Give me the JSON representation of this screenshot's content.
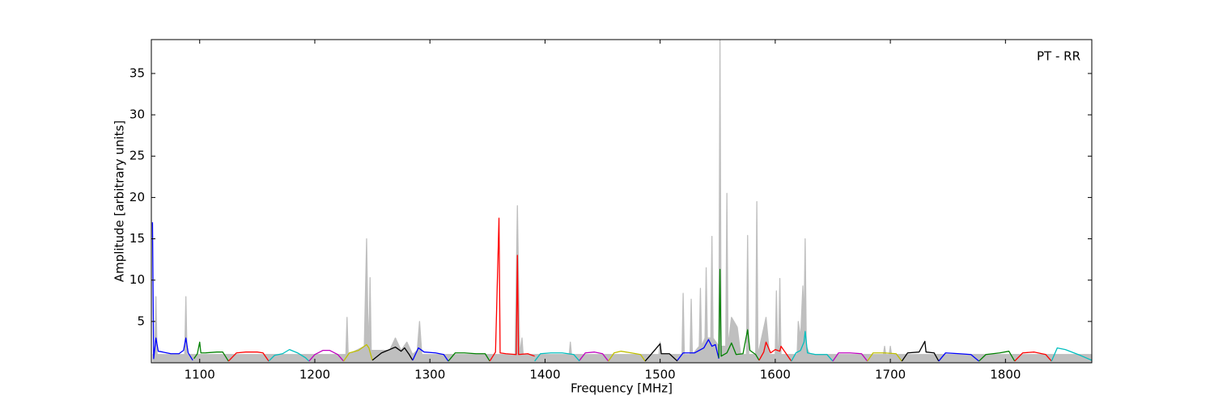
{
  "chart_data": {
    "type": "line",
    "annotation": "PT - RR",
    "xlabel": "Frequency [MHz]",
    "ylabel": "Amplitude [arbitrary units]",
    "xlim": [
      1058,
      1875
    ],
    "ylim": [
      0,
      39.1
    ],
    "xticks": [
      1100,
      1200,
      1300,
      1400,
      1500,
      1600,
      1700,
      1800
    ],
    "yticks": [
      5,
      10,
      15,
      20,
      25,
      30,
      35
    ],
    "series": [
      {
        "color": "#bfbfbf",
        "fill": true,
        "x": [
          1059,
          1061,
          1062,
          1063,
          1087,
          1088,
          1089,
          1227,
          1228,
          1229,
          1243,
          1245,
          1246,
          1247,
          1248,
          1249,
          1265,
          1270,
          1275,
          1280,
          1285,
          1289,
          1291,
          1293,
          1374,
          1376,
          1378,
          1380,
          1381,
          1421,
          1422,
          1423,
          1499,
          1500,
          1501,
          1519,
          1520,
          1521,
          1526,
          1527,
          1528,
          1534,
          1535,
          1536,
          1539,
          1540,
          1541,
          1544,
          1545,
          1546,
          1551,
          1552,
          1553,
          1557,
          1558,
          1559,
          1562,
          1567,
          1570,
          1575,
          1576,
          1577,
          1583,
          1584,
          1585,
          1592,
          1595,
          1600,
          1601,
          1602,
          1603,
          1604,
          1605,
          1619,
          1620,
          1622,
          1624,
          1625,
          1626,
          1627,
          1630,
          1694,
          1695,
          1696,
          1699,
          1700,
          1701,
          1875
        ],
        "values": [
          1,
          1,
          8,
          1,
          1,
          8,
          1,
          1,
          5.5,
          1,
          2,
          15,
          6,
          2,
          10.3,
          1.5,
          1.5,
          3,
          1.5,
          2.5,
          1,
          1.5,
          5,
          1,
          1,
          19,
          1,
          3,
          1,
          1,
          2.5,
          1,
          1,
          2.5,
          1,
          1,
          8.4,
          1,
          1,
          7.7,
          1,
          2,
          9,
          2,
          3,
          11.5,
          3,
          3,
          15.3,
          3,
          2,
          39,
          2,
          2,
          20.5,
          2,
          5.5,
          4.3,
          1,
          1,
          15.4,
          1,
          1,
          19.5,
          1,
          5.5,
          1,
          1,
          8.7,
          2,
          2,
          10.2,
          1,
          1,
          5,
          3,
          9.3,
          5,
          15,
          2,
          1,
          1,
          2,
          1,
          1,
          2,
          1,
          1
        ]
      },
      {
        "color": "#0000ff",
        "x": [
          1059,
          1060,
          1062,
          1064,
          1068,
          1075,
          1082,
          1086,
          1088,
          1090,
          1094
        ],
        "values": [
          17,
          0.5,
          3,
          1.4,
          1.3,
          1.1,
          1.1,
          1.5,
          3,
          1.2,
          0.3
        ]
      },
      {
        "color": "#008000",
        "x": [
          1095,
          1098,
          1100,
          1101,
          1105,
          1115,
          1120,
          1125
        ],
        "values": [
          0.5,
          1.1,
          2.5,
          1.2,
          1.2,
          1.3,
          1.3,
          0.2
        ]
      },
      {
        "color": "#ff0000",
        "x": [
          1125,
          1132,
          1140,
          1150,
          1155,
          1160
        ],
        "values": [
          0.2,
          1.2,
          1.3,
          1.3,
          1.2,
          0.2
        ]
      },
      {
        "color": "#00bfbf",
        "x": [
          1160,
          1165,
          1172,
          1178,
          1185,
          1192,
          1195
        ],
        "values": [
          0.2,
          0.9,
          1.1,
          1.6,
          1.2,
          0.6,
          0.2
        ]
      },
      {
        "color": "#bf00bf",
        "x": [
          1195,
          1200,
          1207,
          1213,
          1220,
          1225
        ],
        "values": [
          0.2,
          1.0,
          1.5,
          1.5,
          1.0,
          0.2
        ]
      },
      {
        "color": "#bfbf00",
        "x": [
          1225,
          1230,
          1238,
          1245,
          1247,
          1250
        ],
        "values": [
          0.2,
          1.2,
          1.5,
          2.2,
          1.8,
          0.3
        ]
      },
      {
        "color": "#000000",
        "x": [
          1250,
          1258,
          1265,
          1270,
          1275,
          1278,
          1282,
          1285
        ],
        "values": [
          0.3,
          1.2,
          1.6,
          1.9,
          1.4,
          1.8,
          1.0,
          0.3
        ]
      },
      {
        "color": "#0000ff",
        "x": [
          1285,
          1290,
          1295,
          1305,
          1312,
          1316
        ],
        "values": [
          0.3,
          1.8,
          1.3,
          1.2,
          1.0,
          0.2
        ]
      },
      {
        "color": "#008000",
        "x": [
          1316,
          1322,
          1330,
          1340,
          1348,
          1352
        ],
        "values": [
          0.2,
          1.2,
          1.2,
          1.1,
          1.1,
          0.2
        ]
      },
      {
        "color": "#ff0000",
        "x": [
          1352,
          1357,
          1360,
          1361,
          1366,
          1375,
          1376,
          1377,
          1385,
          1391
        ],
        "values": [
          0.2,
          1.3,
          17.5,
          1.2,
          1.1,
          1.0,
          13,
          1.0,
          1.1,
          0.8
        ]
      },
      {
        "color": "#00bfbf",
        "x": [
          1391,
          1396,
          1405,
          1415,
          1425,
          1430
        ],
        "values": [
          0.2,
          1.1,
          1.2,
          1.2,
          1.0,
          0.2
        ]
      },
      {
        "color": "#bf00bf",
        "x": [
          1430,
          1435,
          1443,
          1450,
          1455
        ],
        "values": [
          0.3,
          1.2,
          1.3,
          1.1,
          0.2
        ]
      },
      {
        "color": "#bfbf00",
        "x": [
          1455,
          1460,
          1466,
          1475,
          1483,
          1487
        ],
        "values": [
          0.2,
          1.2,
          1.4,
          1.2,
          1.0,
          0.2
        ]
      },
      {
        "color": "#000000",
        "x": [
          1487,
          1492,
          1500,
          1501,
          1508,
          1515
        ],
        "values": [
          0.2,
          1.0,
          2.3,
          1.1,
          1.1,
          0.2
        ]
      },
      {
        "color": "#0000ff",
        "x": [
          1515,
          1520,
          1530,
          1538,
          1542,
          1545,
          1548,
          1551
        ],
        "values": [
          0.3,
          1.2,
          1.2,
          1.8,
          2.8,
          2.0,
          2.2,
          0.5
        ]
      },
      {
        "color": "#008000",
        "x": [
          1551,
          1552,
          1553,
          1558,
          1562,
          1566,
          1572,
          1576,
          1578,
          1583,
          1586
        ],
        "values": [
          0.6,
          11.3,
          0.8,
          1.2,
          2.4,
          1.0,
          1.1,
          4.0,
          1.5,
          1.0,
          0.3
        ]
      },
      {
        "color": "#ff0000",
        "x": [
          1586,
          1590,
          1592,
          1596,
          1600,
          1604,
          1605,
          1610,
          1614
        ],
        "values": [
          0.3,
          1.3,
          2.5,
          1.2,
          1.6,
          1.4,
          2.0,
          1.0,
          0.2
        ]
      },
      {
        "color": "#00bfbf",
        "x": [
          1614,
          1618,
          1622,
          1625,
          1626,
          1628,
          1635,
          1645,
          1650
        ],
        "values": [
          0.2,
          1.2,
          1.5,
          2.5,
          3.8,
          1.2,
          1.0,
          1.0,
          0.2
        ]
      },
      {
        "color": "#bf00bf",
        "x": [
          1650,
          1655,
          1665,
          1675,
          1680
        ],
        "values": [
          0.2,
          1.2,
          1.2,
          1.1,
          0.2
        ]
      },
      {
        "color": "#bfbf00",
        "x": [
          1680,
          1685,
          1695,
          1705,
          1710
        ],
        "values": [
          0.2,
          1.2,
          1.2,
          1.1,
          0.2
        ]
      },
      {
        "color": "#000000",
        "x": [
          1710,
          1715,
          1725,
          1730,
          1731,
          1738,
          1742
        ],
        "values": [
          0.2,
          1.2,
          1.3,
          2.6,
          1.3,
          1.2,
          0.2
        ]
      },
      {
        "color": "#0000ff",
        "x": [
          1742,
          1748,
          1760,
          1770,
          1777
        ],
        "values": [
          0.2,
          1.2,
          1.1,
          1.0,
          0.2
        ]
      },
      {
        "color": "#008000",
        "x": [
          1777,
          1783,
          1795,
          1803,
          1808
        ],
        "values": [
          0.2,
          1.0,
          1.2,
          1.4,
          0.2
        ]
      },
      {
        "color": "#ff0000",
        "x": [
          1808,
          1815,
          1825,
          1835,
          1840
        ],
        "values": [
          0.2,
          1.2,
          1.3,
          1.0,
          0.2
        ]
      },
      {
        "color": "#00bfbf",
        "x": [
          1840,
          1845,
          1852,
          1865,
          1875
        ],
        "values": [
          0.2,
          1.8,
          1.6,
          0.9,
          0.3
        ]
      }
    ]
  }
}
